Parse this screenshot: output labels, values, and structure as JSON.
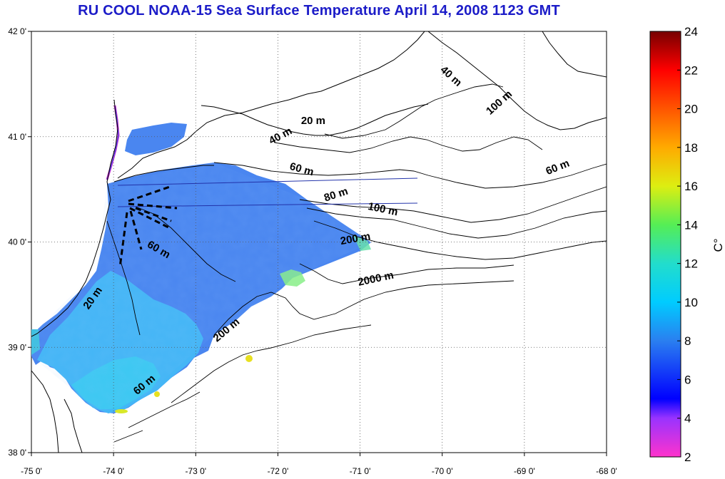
{
  "title": "RU COOL  NOAA-15 Sea Surface Temperature April 14, 2008 1123 GMT",
  "map": {
    "lon_range": [
      -75,
      -68
    ],
    "lat_range": [
      38,
      42
    ],
    "grid": "dotted",
    "lon_ticks": [
      {
        "value": -75,
        "label": "-75 0'"
      },
      {
        "value": -74,
        "label": "-74 0'"
      },
      {
        "value": -73,
        "label": "-73 0'"
      },
      {
        "value": -72,
        "label": "-72 0'"
      },
      {
        "value": -71,
        "label": "-71 0'"
      },
      {
        "value": -70,
        "label": "-70 0'"
      },
      {
        "value": -69,
        "label": "-69 0'"
      },
      {
        "value": -68,
        "label": "-68 0'"
      }
    ],
    "lat_ticks": [
      {
        "value": 42,
        "label": "42 0'"
      },
      {
        "value": 41,
        "label": "41 0'"
      },
      {
        "value": 40,
        "label": "40 0'"
      },
      {
        "value": 39,
        "label": "39 0'"
      },
      {
        "value": 38,
        "label": "38 0'"
      }
    ],
    "contour_labels": [
      {
        "text": "40 m",
        "lon": -69.92,
        "lat": 41.55,
        "angle": 42
      },
      {
        "text": "100 m",
        "lon": -69.28,
        "lat": 41.3,
        "angle": -42
      },
      {
        "text": "20 m",
        "lon": -71.57,
        "lat": 41.12,
        "angle": 0
      },
      {
        "text": "40 m",
        "lon": -71.95,
        "lat": 40.98,
        "angle": -28
      },
      {
        "text": "60 m",
        "lon": -71.72,
        "lat": 40.66,
        "angle": 15
      },
      {
        "text": "60 m",
        "lon": -68.58,
        "lat": 40.68,
        "angle": -22
      },
      {
        "text": "80 m",
        "lon": -71.28,
        "lat": 40.42,
        "angle": -18
      },
      {
        "text": "100 m",
        "lon": -70.73,
        "lat": 40.28,
        "angle": 12
      },
      {
        "text": "200 m",
        "lon": -71.05,
        "lat": 40.0,
        "angle": -10
      },
      {
        "text": "2000 m",
        "lon": -70.8,
        "lat": 39.62,
        "angle": -12
      },
      {
        "text": "60 m",
        "lon": -73.47,
        "lat": 39.9,
        "angle": 30
      },
      {
        "text": "20 m",
        "lon": -74.22,
        "lat": 39.45,
        "angle": -55
      },
      {
        "text": "200 m",
        "lon": -72.6,
        "lat": 39.14,
        "angle": -40
      },
      {
        "text": "60 m",
        "lon": -73.6,
        "lat": 38.62,
        "angle": -40
      }
    ],
    "sst_field": {
      "blue": "#4a86f0",
      "cyan": "#44b6f6",
      "light_cyan": "#3cc8f2",
      "green_patch": "#88ee88",
      "yellow_spot": "#e8e020"
    }
  },
  "colorbar": {
    "min": 2,
    "max": 24,
    "ticks": [
      "2",
      "4",
      "6",
      "8",
      "10",
      "12",
      "14",
      "16",
      "18",
      "20",
      "22",
      "24"
    ],
    "tick_values": [
      2,
      4,
      6,
      8,
      10,
      12,
      14,
      16,
      18,
      20,
      22,
      24
    ],
    "label": "C°",
    "colors": [
      {
        "value": 2,
        "color": "#ff33cc"
      },
      {
        "value": 4,
        "color": "#9933ff"
      },
      {
        "value": 5,
        "color": "#0000ff"
      },
      {
        "value": 8,
        "color": "#2a7ff0"
      },
      {
        "value": 10,
        "color": "#00ccff"
      },
      {
        "value": 12,
        "color": "#22ddcc"
      },
      {
        "value": 14,
        "color": "#55ee55"
      },
      {
        "value": 16,
        "color": "#ddee11"
      },
      {
        "value": 18,
        "color": "#ffaa00"
      },
      {
        "value": 20,
        "color": "#ff5500"
      },
      {
        "value": 22,
        "color": "#ff0000"
      },
      {
        "value": 24,
        "color": "#770000"
      }
    ]
  }
}
